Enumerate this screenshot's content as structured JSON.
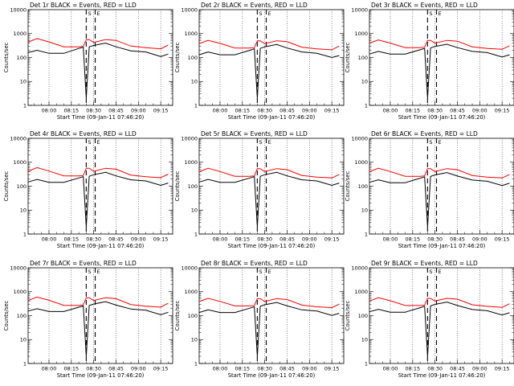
{
  "figure": {
    "x_ticks": [
      "08:00",
      "08:15",
      "08:30",
      "08:45",
      "09:00",
      "09:15"
    ],
    "y_ticks": [
      "1",
      "10",
      "100",
      "1000",
      "10000"
    ],
    "marker_labels": [
      "S",
      "E"
    ],
    "ylabel": "Counts/sec",
    "xlabel": "Start Time (09-Jan-11 07:46:20)",
    "colors": {
      "events": "#000000",
      "lld": "#ff0000"
    }
  },
  "chart_data": [
    {
      "type": "line",
      "title": "Det 1r BLACK = Events, RED = LLD",
      "xlabel": "Start Time (09-Jan-11 07:46:20)",
      "ylabel": "Counts/sec",
      "y_scale": "log",
      "ylim": [
        1,
        10000
      ],
      "x_ticks": [
        "08:00",
        "08:15",
        "08:30",
        "08:45",
        "09:00",
        "09:15"
      ],
      "series": [
        {
          "name": "Events",
          "color": "#000000",
          "x": [
            "07:46",
            "07:52",
            "08:00",
            "08:10",
            "08:20",
            "08:23",
            "08:25",
            "08:27",
            "08:30",
            "08:38",
            "08:45",
            "08:55",
            "09:05",
            "09:15",
            "09:20"
          ],
          "y": [
            160,
            200,
            150,
            150,
            240,
            270,
            2,
            280,
            320,
            400,
            280,
            190,
            170,
            110,
            140
          ]
        },
        {
          "name": "LLD",
          "color": "#ff0000",
          "x": [
            "07:46",
            "07:52",
            "08:00",
            "08:10",
            "08:20",
            "08:23",
            "08:25",
            "08:27",
            "08:30",
            "08:38",
            "08:45",
            "08:55",
            "09:05",
            "09:15",
            "09:20"
          ],
          "y": [
            440,
            620,
            450,
            280,
            280,
            290,
            560,
            560,
            430,
            560,
            520,
            300,
            260,
            230,
            330
          ]
        }
      ]
    },
    {
      "type": "line",
      "title": "Det 2r BLACK = Events, RED = LLD",
      "xlabel": "Start Time (09-Jan-11 07:46:20)",
      "ylabel": "Counts/sec",
      "y_scale": "log",
      "ylim": [
        1,
        10000
      ],
      "x_ticks": [
        "08:00",
        "08:15",
        "08:30",
        "08:45",
        "09:00",
        "09:15"
      ],
      "series": [
        {
          "name": "Events",
          "color": "#000000",
          "x": [
            "07:46",
            "07:52",
            "08:00",
            "08:10",
            "08:20",
            "08:23",
            "08:25",
            "08:27",
            "08:30",
            "08:38",
            "08:45",
            "08:55",
            "09:05",
            "09:15",
            "09:20"
          ],
          "y": [
            130,
            170,
            130,
            130,
            200,
            230,
            2,
            240,
            280,
            350,
            250,
            170,
            150,
            100,
            120
          ]
        },
        {
          "name": "LLD",
          "color": "#ff0000",
          "x": [
            "07:46",
            "07:52",
            "08:00",
            "08:10",
            "08:20",
            "08:23",
            "08:25",
            "08:27",
            "08:30",
            "08:38",
            "08:45",
            "08:55",
            "09:05",
            "09:15",
            "09:20"
          ],
          "y": [
            380,
            520,
            390,
            250,
            250,
            260,
            500,
            500,
            380,
            500,
            460,
            270,
            230,
            210,
            300
          ]
        }
      ]
    },
    {
      "type": "line",
      "title": "Det 3r BLACK = Events, RED = LLD",
      "xlabel": "Start Time (09-Jan-11 07:46:20)",
      "ylabel": "Counts/sec",
      "y_scale": "log",
      "ylim": [
        1,
        10000
      ],
      "x_ticks": [
        "08:00",
        "08:15",
        "08:30",
        "08:45",
        "09:00",
        "09:15"
      ],
      "series": [
        {
          "name": "Events",
          "color": "#000000",
          "x": [
            "07:46",
            "07:52",
            "08:00",
            "08:10",
            "08:20",
            "08:23",
            "08:25",
            "08:27",
            "08:30",
            "08:38",
            "08:45",
            "08:55",
            "09:05",
            "09:15",
            "09:20"
          ],
          "y": [
            140,
            180,
            140,
            140,
            210,
            240,
            2,
            250,
            290,
            360,
            260,
            180,
            160,
            105,
            130
          ]
        },
        {
          "name": "LLD",
          "color": "#ff0000",
          "x": [
            "07:46",
            "07:52",
            "08:00",
            "08:10",
            "08:20",
            "08:23",
            "08:25",
            "08:27",
            "08:30",
            "08:38",
            "08:45",
            "08:55",
            "09:05",
            "09:15",
            "09:20"
          ],
          "y": [
            400,
            540,
            400,
            260,
            260,
            270,
            520,
            520,
            400,
            520,
            480,
            280,
            240,
            220,
            310
          ]
        }
      ]
    },
    {
      "type": "line",
      "title": "Det 4r BLACK = Events, RED = LLD",
      "xlabel": "Start Time (09-Jan-11 07:46:20)",
      "ylabel": "Counts/sec",
      "y_scale": "log",
      "ylim": [
        1,
        10000
      ],
      "x_ticks": [
        "08:00",
        "08:15",
        "08:30",
        "08:45",
        "09:00",
        "09:15"
      ],
      "series": [
        {
          "name": "Events",
          "color": "#000000",
          "x": [
            "07:46",
            "07:52",
            "08:00",
            "08:10",
            "08:20",
            "08:23",
            "08:25",
            "08:27",
            "08:30",
            "08:38",
            "08:45",
            "08:55",
            "09:05",
            "09:15",
            "09:20"
          ],
          "y": [
            150,
            190,
            145,
            145,
            220,
            250,
            2,
            260,
            300,
            380,
            270,
            185,
            165,
            108,
            135
          ]
        },
        {
          "name": "LLD",
          "color": "#ff0000",
          "x": [
            "07:46",
            "07:52",
            "08:00",
            "08:10",
            "08:20",
            "08:23",
            "08:25",
            "08:27",
            "08:30",
            "08:38",
            "08:45",
            "08:55",
            "09:05",
            "09:15",
            "09:20"
          ],
          "y": [
            420,
            600,
            430,
            270,
            270,
            280,
            560,
            560,
            420,
            560,
            510,
            290,
            250,
            225,
            320
          ]
        }
      ]
    },
    {
      "type": "line",
      "title": "Det 5r BLACK = Events, RED = LLD",
      "xlabel": "Start Time (09-Jan-11 07:46:20)",
      "ylabel": "Counts/sec",
      "y_scale": "log",
      "ylim": [
        1,
        10000
      ],
      "x_ticks": [
        "08:00",
        "08:15",
        "08:30",
        "08:45",
        "09:00",
        "09:15"
      ],
      "series": [
        {
          "name": "Events",
          "color": "#000000",
          "x": [
            "07:46",
            "07:52",
            "08:00",
            "08:10",
            "08:20",
            "08:23",
            "08:25",
            "08:27",
            "08:30",
            "08:38",
            "08:45",
            "08:55",
            "09:05",
            "09:15",
            "09:20"
          ],
          "y": [
            150,
            190,
            145,
            145,
            220,
            250,
            2,
            260,
            300,
            380,
            270,
            185,
            165,
            108,
            135
          ]
        },
        {
          "name": "LLD",
          "color": "#ff0000",
          "x": [
            "07:46",
            "07:52",
            "08:00",
            "08:10",
            "08:20",
            "08:23",
            "08:25",
            "08:27",
            "08:30",
            "08:38",
            "08:45",
            "08:55",
            "09:05",
            "09:15",
            "09:20"
          ],
          "y": [
            400,
            560,
            410,
            260,
            260,
            270,
            540,
            540,
            410,
            540,
            490,
            280,
            240,
            220,
            310
          ]
        }
      ]
    },
    {
      "type": "line",
      "title": "Det 6r BLACK = Events, RED = LLD",
      "xlabel": "Start Time (09-Jan-11 07:46:20)",
      "ylabel": "Counts/sec",
      "y_scale": "log",
      "ylim": [
        1,
        10000
      ],
      "x_ticks": [
        "08:00",
        "08:15",
        "08:30",
        "08:45",
        "09:00",
        "09:15"
      ],
      "series": [
        {
          "name": "Events",
          "color": "#000000",
          "x": [
            "07:46",
            "07:52",
            "08:00",
            "08:10",
            "08:20",
            "08:23",
            "08:25",
            "08:27",
            "08:30",
            "08:38",
            "08:45",
            "08:55",
            "09:05",
            "09:15",
            "09:20"
          ],
          "y": [
            145,
            185,
            140,
            140,
            215,
            245,
            2,
            255,
            295,
            370,
            265,
            180,
            160,
            106,
            132
          ]
        },
        {
          "name": "LLD",
          "color": "#ff0000",
          "x": [
            "07:46",
            "07:52",
            "08:00",
            "08:10",
            "08:20",
            "08:23",
            "08:25",
            "08:27",
            "08:30",
            "08:38",
            "08:45",
            "08:55",
            "09:05",
            "09:15",
            "09:20"
          ],
          "y": [
            400,
            560,
            410,
            260,
            260,
            270,
            540,
            540,
            410,
            540,
            490,
            280,
            240,
            220,
            310
          ]
        }
      ]
    },
    {
      "type": "line",
      "title": "Det 7r BLACK = Events, RED = LLD",
      "xlabel": "Start Time (09-Jan-11 07:46:20)",
      "ylabel": "Counts/sec",
      "y_scale": "log",
      "ylim": [
        1,
        10000
      ],
      "x_ticks": [
        "08:00",
        "08:15",
        "08:30",
        "08:45",
        "09:00",
        "09:15"
      ],
      "series": [
        {
          "name": "Events",
          "color": "#000000",
          "x": [
            "07:46",
            "07:52",
            "08:00",
            "08:10",
            "08:20",
            "08:23",
            "08:25",
            "08:27",
            "08:30",
            "08:38",
            "08:45",
            "08:55",
            "09:05",
            "09:15",
            "09:20"
          ],
          "y": [
            155,
            195,
            148,
            148,
            225,
            255,
            2,
            265,
            305,
            385,
            275,
            188,
            168,
            110,
            138
          ]
        },
        {
          "name": "LLD",
          "color": "#ff0000",
          "x": [
            "07:46",
            "07:52",
            "08:00",
            "08:10",
            "08:20",
            "08:23",
            "08:25",
            "08:27",
            "08:30",
            "08:38",
            "08:45",
            "08:55",
            "09:05",
            "09:15",
            "09:20"
          ],
          "y": [
            430,
            600,
            440,
            270,
            270,
            280,
            560,
            560,
            430,
            560,
            510,
            290,
            250,
            225,
            330
          ]
        }
      ]
    },
    {
      "type": "line",
      "title": "Det 8r BLACK = Events, RED = LLD",
      "xlabel": "Start Time (09-Jan-11 07:46:20)",
      "ylabel": "Counts/sec",
      "y_scale": "log",
      "ylim": [
        1,
        10000
      ],
      "x_ticks": [
        "08:00",
        "08:15",
        "08:30",
        "08:45",
        "09:00",
        "09:15"
      ],
      "series": [
        {
          "name": "Events",
          "color": "#000000",
          "x": [
            "07:46",
            "07:52",
            "08:00",
            "08:10",
            "08:20",
            "08:23",
            "08:25",
            "08:27",
            "08:30",
            "08:38",
            "08:45",
            "08:55",
            "09:05",
            "09:15",
            "09:20"
          ],
          "y": [
            135,
            175,
            135,
            135,
            205,
            235,
            2,
            245,
            285,
            355,
            255,
            175,
            155,
            102,
            125
          ]
        },
        {
          "name": "LLD",
          "color": "#ff0000",
          "x": [
            "07:46",
            "07:52",
            "08:00",
            "08:10",
            "08:20",
            "08:23",
            "08:25",
            "08:27",
            "08:30",
            "08:38",
            "08:45",
            "08:55",
            "09:05",
            "09:15",
            "09:20"
          ],
          "y": [
            390,
            530,
            395,
            255,
            255,
            265,
            510,
            510,
            390,
            510,
            470,
            275,
            235,
            215,
            305
          ]
        }
      ]
    },
    {
      "type": "line",
      "title": "Det 9r BLACK = Events, RED = LLD",
      "xlabel": "Start Time (09-Jan-11 07:46:20)",
      "ylabel": "Counts/sec",
      "y_scale": "log",
      "ylim": [
        1,
        10000
      ],
      "x_ticks": [
        "08:00",
        "08:15",
        "08:30",
        "08:45",
        "09:00",
        "09:15"
      ],
      "series": [
        {
          "name": "Events",
          "color": "#000000",
          "x": [
            "07:46",
            "07:52",
            "08:00",
            "08:10",
            "08:20",
            "08:23",
            "08:25",
            "08:27",
            "08:30",
            "08:38",
            "08:45",
            "08:55",
            "09:05",
            "09:15",
            "09:20"
          ],
          "y": [
            145,
            185,
            140,
            140,
            215,
            245,
            2,
            255,
            295,
            370,
            265,
            180,
            160,
            106,
            132
          ]
        },
        {
          "name": "LLD",
          "color": "#ff0000",
          "x": [
            "07:46",
            "07:52",
            "08:00",
            "08:10",
            "08:20",
            "08:23",
            "08:25",
            "08:27",
            "08:30",
            "08:38",
            "08:45",
            "08:55",
            "09:05",
            "09:15",
            "09:20"
          ],
          "y": [
            410,
            560,
            420,
            265,
            265,
            275,
            530,
            530,
            410,
            530,
            490,
            285,
            245,
            220,
            315
          ]
        }
      ]
    }
  ]
}
